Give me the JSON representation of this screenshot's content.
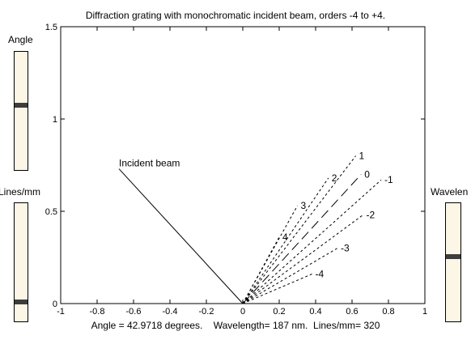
{
  "title": "Diffraction grating with monochromatic incident beam, orders -4 to +4.",
  "controls": {
    "angle": {
      "label": "Angle",
      "level": 0.55
    },
    "lines": {
      "label": "Lines/mm",
      "level": 0.15
    },
    "wavelength": {
      "label": "Wavelen",
      "level": 0.55
    }
  },
  "status": {
    "angle_text": "Angle = 42.9718 degrees.",
    "wavelength_text": "Wavelength= 187 nm.",
    "lines_text": "Lines/mm= 320"
  },
  "chart_data": {
    "type": "line",
    "xlim": [
      -1,
      1
    ],
    "ylim": [
      0,
      1.5
    ],
    "xticks": [
      "-1",
      "-0.8",
      "-0.6",
      "-0.4",
      "-0.2",
      "0",
      "0.2",
      "0.4",
      "0.6",
      "0.8",
      "1"
    ],
    "yticks": [
      "0",
      "0.5",
      "1",
      "1.5"
    ],
    "incident": {
      "label": "Incident beam",
      "x": [
        -0.68,
        0
      ],
      "y": [
        0.73,
        0
      ]
    },
    "orders": [
      {
        "label": "-4",
        "x": [
          0,
          0.38
        ],
        "y": [
          0,
          0.16
        ]
      },
      {
        "label": "-3",
        "x": [
          0,
          0.52
        ],
        "y": [
          0,
          0.3
        ]
      },
      {
        "label": "-2",
        "x": [
          0,
          0.66
        ],
        "y": [
          0,
          0.48
        ]
      },
      {
        "label": "-1",
        "x": [
          0,
          0.76
        ],
        "y": [
          0,
          0.67
        ]
      },
      {
        "label": "0",
        "x": [
          0,
          0.65
        ],
        "y": [
          0,
          0.7
        ]
      },
      {
        "label": "1",
        "x": [
          0,
          0.62
        ],
        "y": [
          0,
          0.8
        ]
      },
      {
        "label": "2",
        "x": [
          0,
          0.47
        ],
        "y": [
          0,
          0.68
        ]
      },
      {
        "label": "3",
        "x": [
          0,
          0.3
        ],
        "y": [
          0,
          0.53
        ]
      },
      {
        "label": "4",
        "x": [
          0,
          0.2
        ],
        "y": [
          0,
          0.36
        ]
      }
    ]
  }
}
